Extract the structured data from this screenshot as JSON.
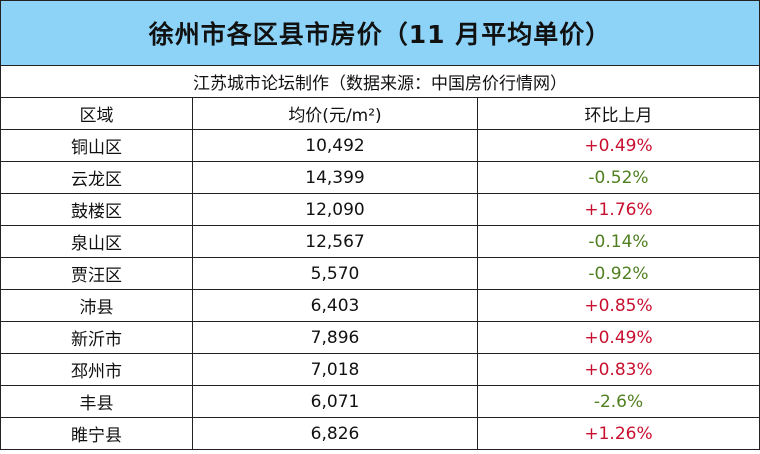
{
  "title": "徐州市各区县市房价（11 月平均单价）",
  "subtitle": "江苏城市论坛制作（数据来源：中国房价行情网）",
  "headers": [
    "区域",
    "均价(元/m²)",
    "环比上月"
  ],
  "colors": {
    "title_bg": "#8dd3f7",
    "up": "#c8102e",
    "down": "#4f7f1f"
  },
  "rows": [
    {
      "area": "铜山区",
      "price": "10,492",
      "change": "+0.49%"
    },
    {
      "area": "云龙区",
      "price": "14,399",
      "change": "-0.52%"
    },
    {
      "area": "鼓楼区",
      "price": "12,090",
      "change": "+1.76%"
    },
    {
      "area": "泉山区",
      "price": "12,567",
      "change": "-0.14%"
    },
    {
      "area": "贾汪区",
      "price": "5,570",
      "change": "-0.92%"
    },
    {
      "area": "沛县",
      "price": "6,403",
      "change": "+0.85%"
    },
    {
      "area": "新沂市",
      "price": "7,896",
      "change": "+0.49%"
    },
    {
      "area": "邳州市",
      "price": "7,018",
      "change": "+0.83%"
    },
    {
      "area": "丰县",
      "price": "6,071",
      "change": "-2.6%"
    },
    {
      "area": "睢宁县",
      "price": "6,826",
      "change": "+1.26%"
    }
  ]
}
